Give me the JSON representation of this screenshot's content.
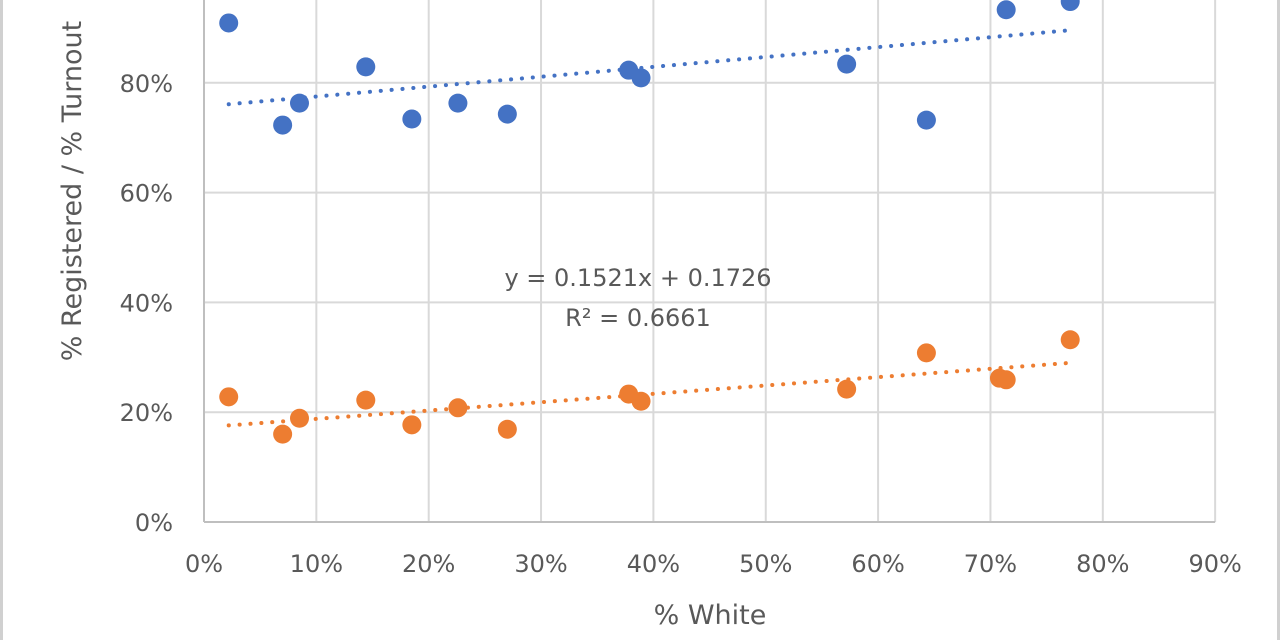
{
  "chart_data": {
    "type": "scatter",
    "title": "",
    "xlabel": "% White",
    "ylabel": "% Registered / % Turnout",
    "xlim": [
      0,
      0.9
    ],
    "ylim": [
      0,
      0.95
    ],
    "x_ticks": [
      0,
      0.1,
      0.2,
      0.3,
      0.4,
      0.5,
      0.6,
      0.7,
      0.8,
      0.9
    ],
    "x_tick_labels": [
      "0%",
      "10%",
      "20%",
      "30%",
      "40%",
      "50%",
      "60%",
      "70%",
      "80%",
      "90%"
    ],
    "y_ticks": [
      0,
      0.2,
      0.4,
      0.6,
      0.8
    ],
    "y_tick_labels": [
      "0%",
      "20%",
      "40%",
      "60%",
      "80%"
    ],
    "grid": true,
    "legend": "none",
    "series": [
      {
        "name": "% Registered",
        "color": "#4472c4",
        "points": [
          [
            0.022,
            0.909
          ],
          [
            0.07,
            0.723
          ],
          [
            0.085,
            0.763
          ],
          [
            0.144,
            0.829
          ],
          [
            0.185,
            0.734
          ],
          [
            0.226,
            0.763
          ],
          [
            0.27,
            0.743
          ],
          [
            0.378,
            0.823
          ],
          [
            0.389,
            0.809
          ],
          [
            0.572,
            0.834
          ],
          [
            0.643,
            0.732
          ],
          [
            0.714,
            0.933
          ],
          [
            0.771,
            0.948
          ]
        ],
        "trendline": {
          "type": "linear",
          "style": "dotted",
          "slope": 0.18,
          "intercept": 0.757,
          "x_range": [
            0.022,
            0.771
          ]
        }
      },
      {
        "name": "% Turnout",
        "color": "#ed7d31",
        "points": [
          [
            0.022,
            0.228
          ],
          [
            0.07,
            0.16
          ],
          [
            0.085,
            0.189
          ],
          [
            0.144,
            0.222
          ],
          [
            0.185,
            0.177
          ],
          [
            0.226,
            0.208
          ],
          [
            0.27,
            0.169
          ],
          [
            0.378,
            0.233
          ],
          [
            0.389,
            0.22
          ],
          [
            0.572,
            0.242
          ],
          [
            0.643,
            0.308
          ],
          [
            0.708,
            0.262
          ],
          [
            0.714,
            0.259
          ],
          [
            0.771,
            0.332
          ]
        ],
        "trendline": {
          "type": "linear",
          "style": "dotted",
          "slope": 0.1521,
          "intercept": 0.1726,
          "x_range": [
            0.022,
            0.771
          ]
        }
      }
    ],
    "annotations": [
      {
        "text": "y = 0.1521x + 0.1726",
        "series": "% Turnout"
      },
      {
        "text": "R² = 0.6661",
        "series": "% Turnout"
      }
    ]
  }
}
